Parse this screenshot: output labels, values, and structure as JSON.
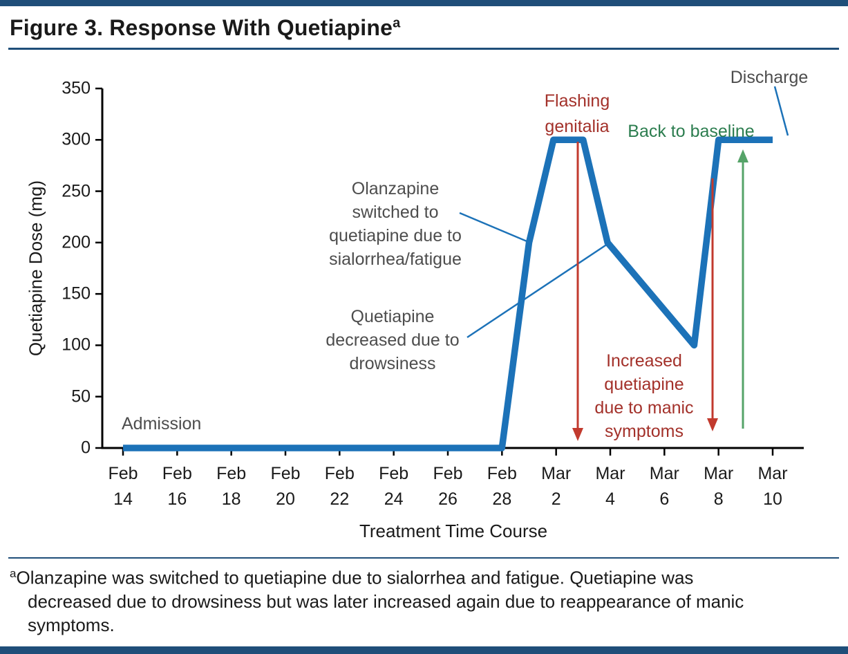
{
  "title": {
    "text": "Figure 3. Response With Quetiapine",
    "superscript": "a"
  },
  "footnote": {
    "superscript": "a",
    "text": "Olanzapine was switched to quetiapine due to sialorrhea and fatigue. Quetiapine was\ndecreased due to drowsiness but was later increased again due to reappearance of manic\nsymptoms."
  },
  "colors": {
    "bar_navy": "#1F4E79",
    "line_blue": "#1C72B8",
    "annotation_gray": "#4D4D4D",
    "annotation_red": "#A3312A",
    "arrow_red": "#C23A2E",
    "annotation_green": "#2C7D4F",
    "arrow_green": "#55A368",
    "axis_black": "#000000",
    "text_black": "#1A1A1A"
  },
  "chart_data": {
    "type": "line",
    "title": "Figure 3. Response With Quetiapine",
    "xlabel": "Treatment Time Course",
    "ylabel": "Quetiapine Dose (mg)",
    "ylim": [
      0,
      350
    ],
    "grid": false,
    "legend": "none",
    "y_ticks": [
      0,
      50,
      100,
      150,
      200,
      250,
      300,
      350
    ],
    "x_domain_days": [
      0,
      24
    ],
    "x_ticks": [
      {
        "month": "Feb",
        "date": "14",
        "day": 0
      },
      {
        "month": "Feb",
        "date": "16",
        "day": 2
      },
      {
        "month": "Feb",
        "date": "18",
        "day": 4
      },
      {
        "month": "Feb",
        "date": "20",
        "day": 6
      },
      {
        "month": "Feb",
        "date": "22",
        "day": 8
      },
      {
        "month": "Feb",
        "date": "24",
        "day": 10
      },
      {
        "month": "Feb",
        "date": "26",
        "day": 12
      },
      {
        "month": "Feb",
        "date": "28",
        "day": 14
      },
      {
        "month": "Mar",
        "date": "2",
        "day": 16
      },
      {
        "month": "Mar",
        "date": "4",
        "day": 18
      },
      {
        "month": "Mar",
        "date": "6",
        "day": 20
      },
      {
        "month": "Mar",
        "date": "8",
        "day": 22
      },
      {
        "month": "Mar",
        "date": "10",
        "day": 24
      }
    ],
    "series": [
      {
        "name": "Quetiapine dose (mg)",
        "points": [
          {
            "date": "Feb 14",
            "day": 0,
            "mg": 0
          },
          {
            "date": "Feb 28",
            "day": 14,
            "mg": 0
          },
          {
            "date": "Mar 1",
            "day": 15,
            "mg": 200
          },
          {
            "date": "Mar 2",
            "day": 15.9,
            "mg": 300
          },
          {
            "date": "Mar 3",
            "day": 17,
            "mg": 300
          },
          {
            "date": "Mar 4",
            "day": 17.9,
            "mg": 200
          },
          {
            "date": "Mar 7",
            "day": 21.1,
            "mg": 100
          },
          {
            "date": "Mar 8",
            "day": 22,
            "mg": 300
          },
          {
            "date": "Mar 10",
            "day": 24,
            "mg": 300
          }
        ]
      }
    ],
    "annotations": {
      "admission": {
        "text": "Admission",
        "color": "gray"
      },
      "olanzapine_switch": {
        "text": "Olanzapine\nswitched to\nquetiapine due to\nsialorrhea/fatigue",
        "color": "gray"
      },
      "quetiapine_decrease": {
        "text": "Quetiapine\ndecreased due to\ndrowsiness",
        "color": "gray"
      },
      "flashing_genitalia": {
        "text": "Flashing\ngenitalia",
        "color": "red"
      },
      "increased_quetiapine": {
        "text": "Increased\nquetiapine\ndue to manic\nsymptoms",
        "color": "red"
      },
      "back_to_baseline": {
        "text": "Back to baseline",
        "color": "green"
      },
      "discharge": {
        "text": "Discharge",
        "color": "gray"
      }
    }
  }
}
